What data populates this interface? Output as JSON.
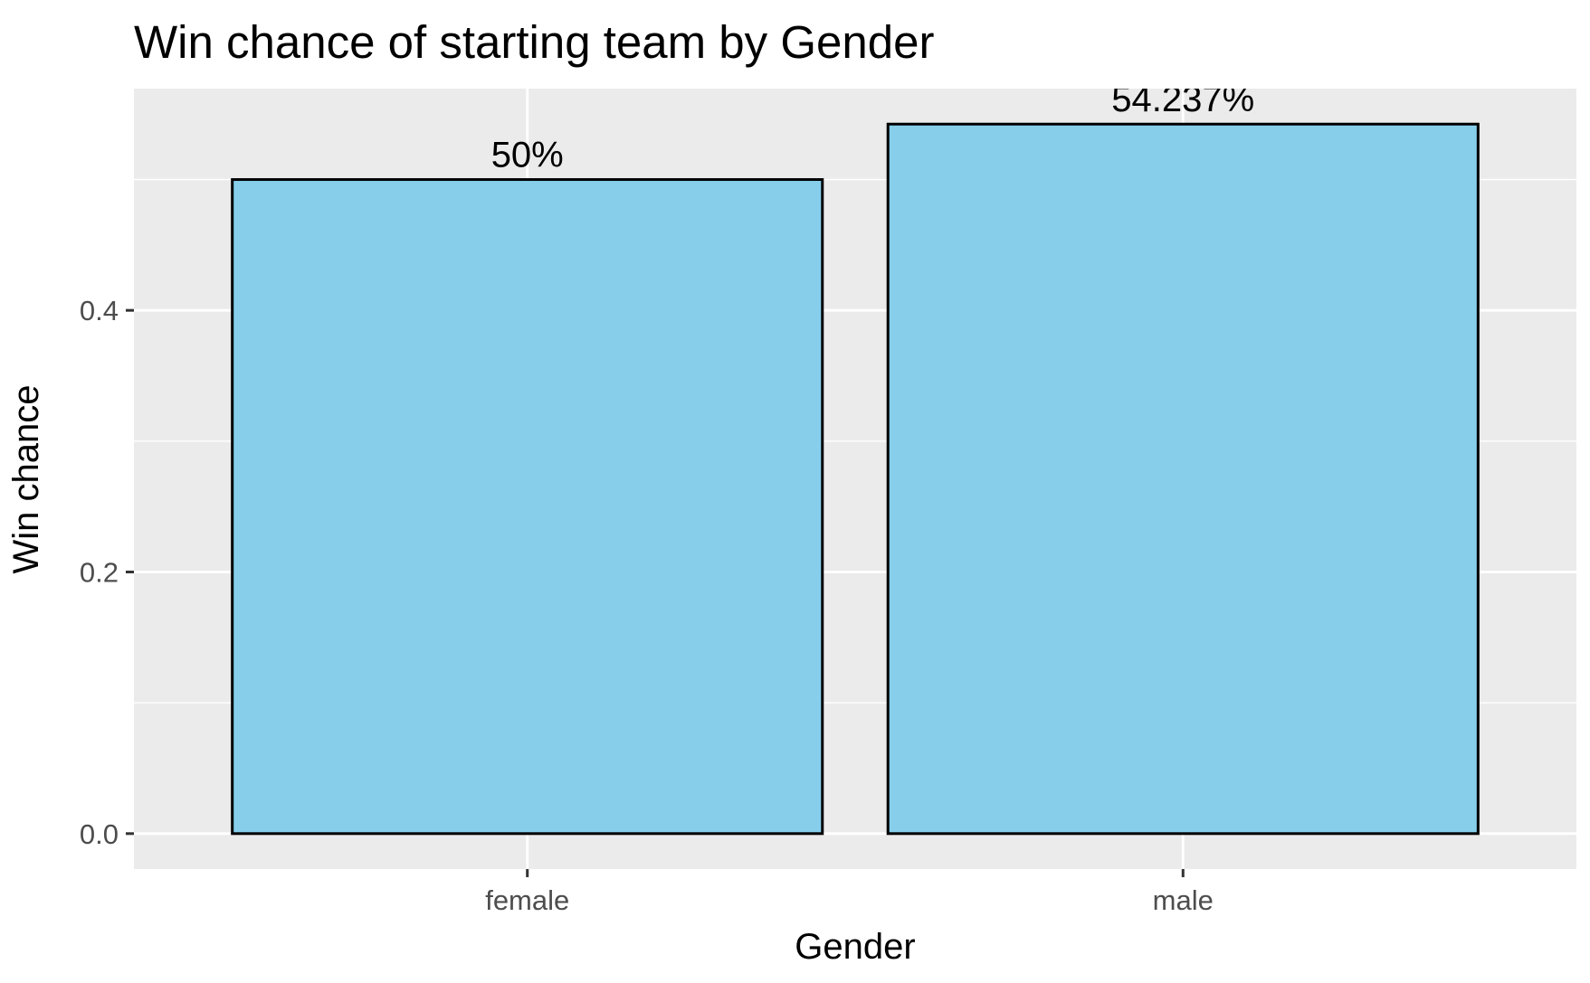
{
  "chart_data": {
    "type": "bar",
    "title": "Win chance of starting team by Gender",
    "xlabel": "Gender",
    "ylabel": "Win chance",
    "categories": [
      "female",
      "male"
    ],
    "values": [
      0.5,
      0.54237
    ],
    "data_labels": [
      "50%",
      "54.237%"
    ],
    "ylim": [
      -0.0271,
      0.5695
    ],
    "yticks": [
      0.0,
      0.2,
      0.4
    ],
    "ytick_labels": [
      "0.0",
      "0.2",
      "0.4"
    ],
    "grid": true,
    "legend": "none",
    "colors": {
      "panel_background": "#ebebeb",
      "grid": "#ffffff",
      "bar_fill": "#87ceeb",
      "bar_outline": "#000000",
      "tick_text": "#4d4d4d",
      "tick_mark": "#333333"
    }
  }
}
